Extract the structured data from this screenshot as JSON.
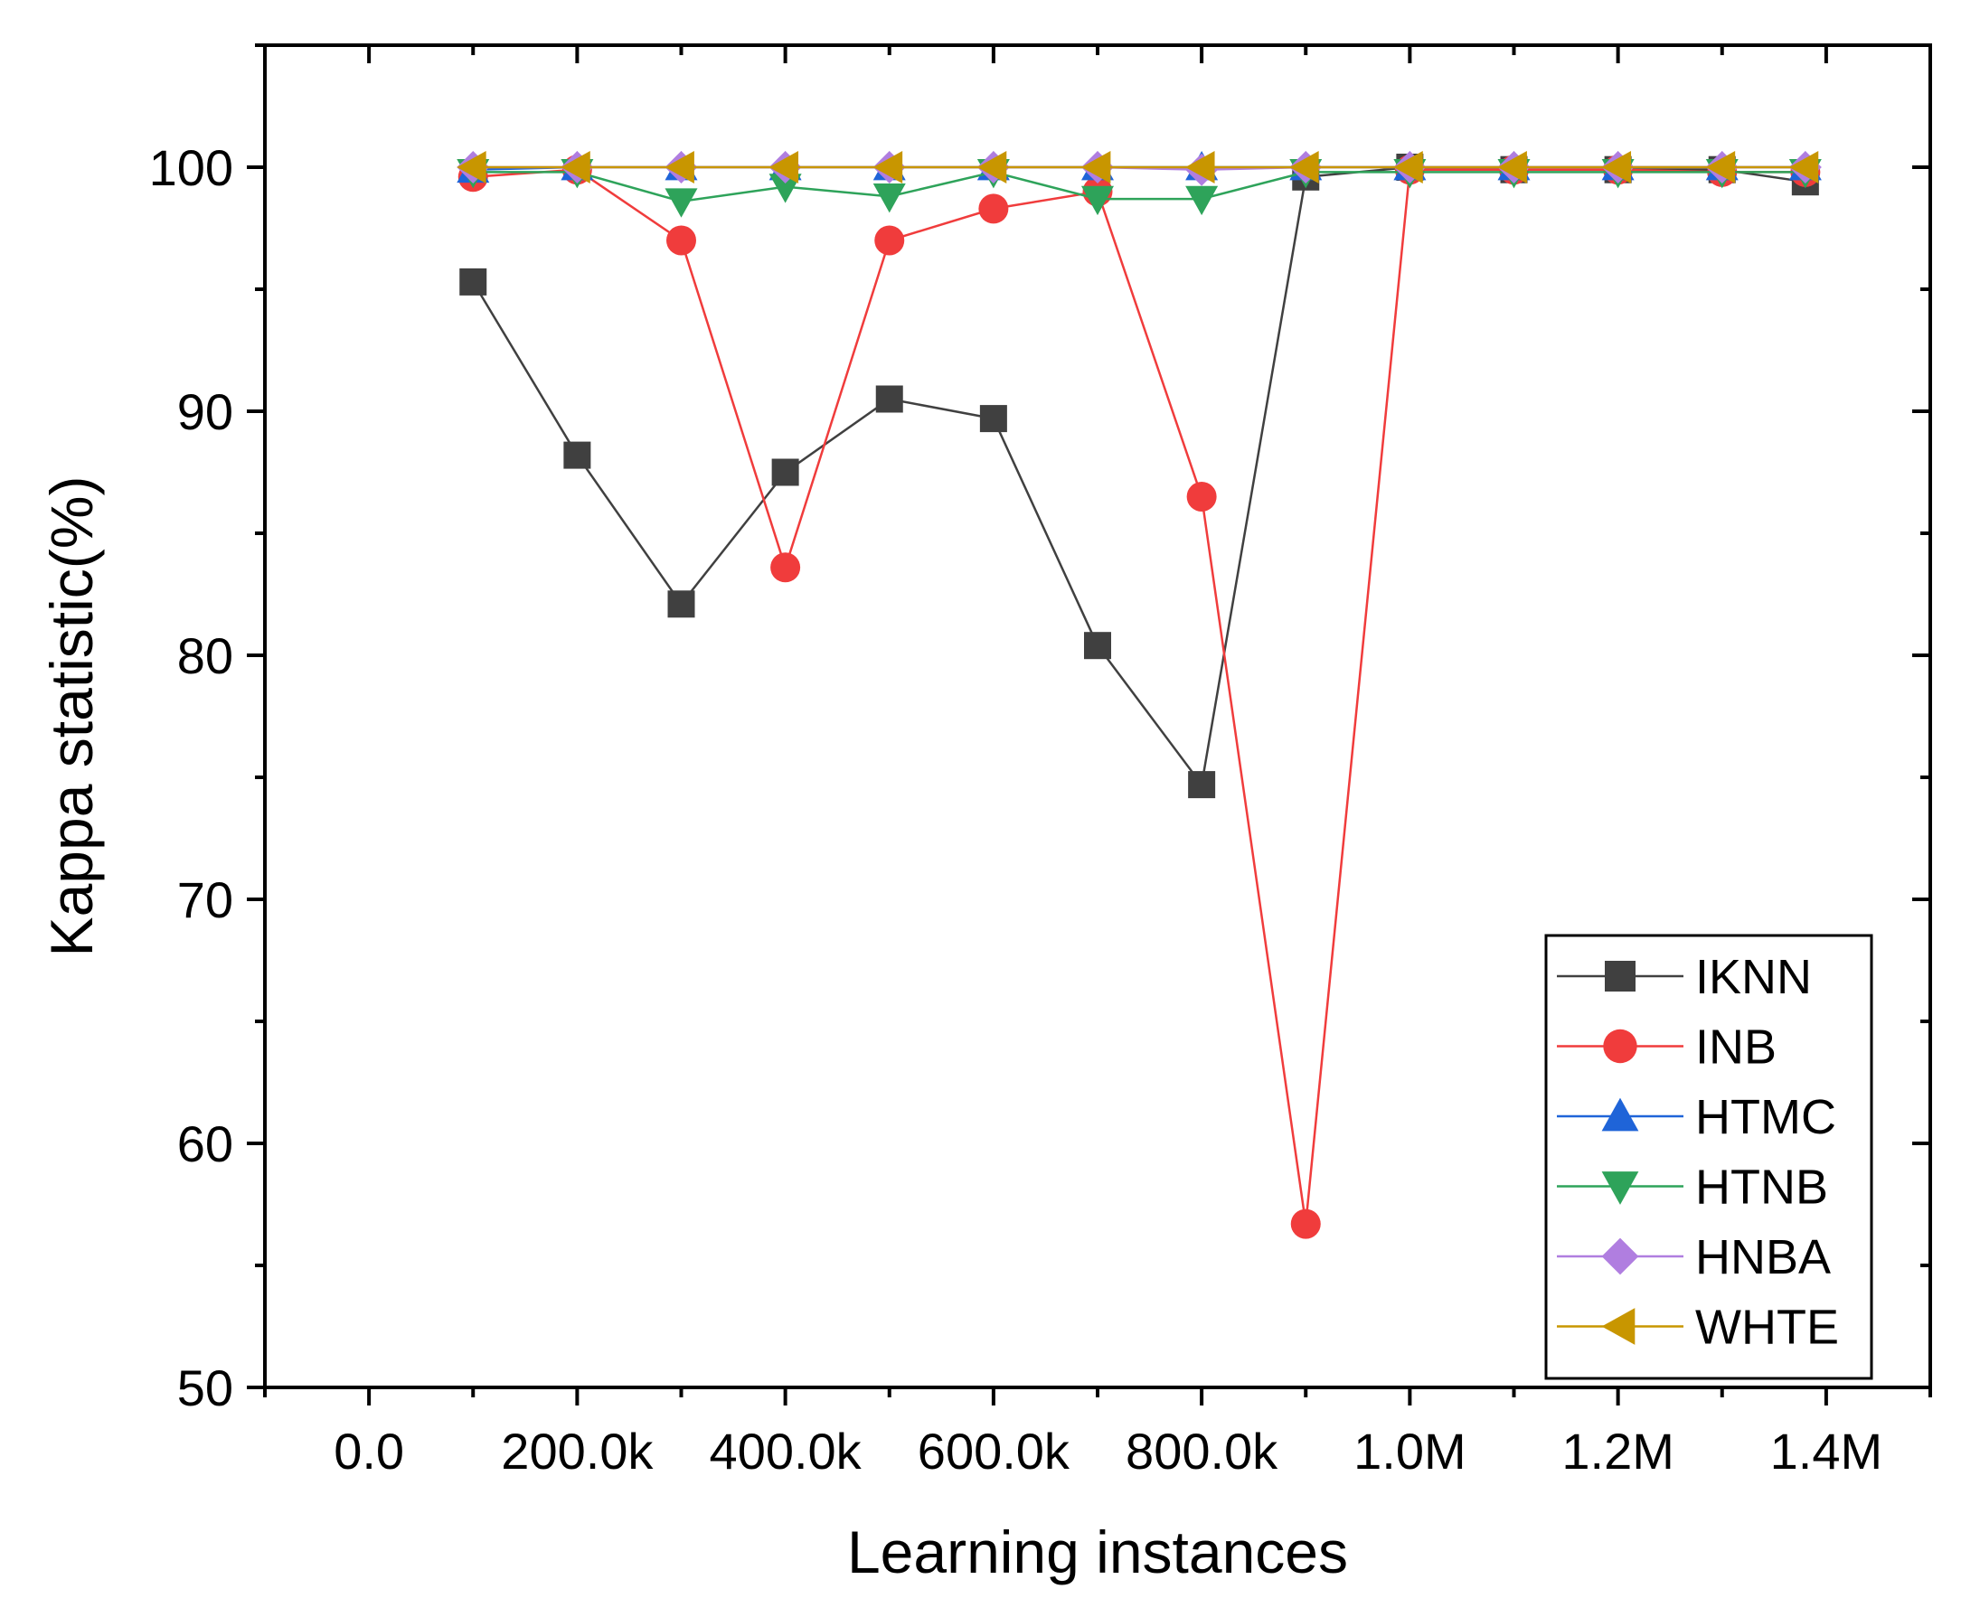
{
  "chart_data": {
    "type": "line",
    "title": "",
    "xlabel": "Learning instances",
    "ylabel": "Kappa statistic(%)",
    "xlim": [
      -100000,
      1500000
    ],
    "ylim": [
      50,
      105
    ],
    "x_ticks": [
      0,
      200000,
      400000,
      600000,
      800000,
      1000000,
      1200000,
      1400000
    ],
    "x_tick_labels": [
      "0.0",
      "200.0k",
      "400.0k",
      "600.0k",
      "800.0k",
      "1.0M",
      "1.2M",
      "1.4M"
    ],
    "y_ticks": [
      50,
      60,
      70,
      80,
      90,
      100
    ],
    "y_tick_labels": [
      "50",
      "60",
      "70",
      "80",
      "90",
      "100"
    ],
    "grid": false,
    "legend_position": "bottom-right",
    "x": [
      100000,
      200000,
      300000,
      400000,
      500000,
      600000,
      700000,
      800000,
      900000,
      1000000,
      1100000,
      1200000,
      1300000,
      1380000
    ],
    "series": [
      {
        "name": "IKNN",
        "color": "#404040",
        "marker": "square",
        "values": [
          95.3,
          88.2,
          82.1,
          87.5,
          90.5,
          89.7,
          80.4,
          74.7,
          99.6,
          100.0,
          99.9,
          99.9,
          99.9,
          99.4
        ]
      },
      {
        "name": "INB",
        "color": "#f03c3c",
        "marker": "circle",
        "values": [
          99.6,
          99.9,
          97.0,
          83.6,
          97.0,
          98.3,
          99.0,
          86.5,
          56.7,
          99.9,
          99.9,
          99.9,
          99.8,
          99.8
        ]
      },
      {
        "name": "HTMC",
        "color": "#1f64d8",
        "marker": "triangle-up",
        "values": [
          99.9,
          100.0,
          100.0,
          100.0,
          100.0,
          100.0,
          100.0,
          100.0,
          100.0,
          100.0,
          100.0,
          100.0,
          100.0,
          100.0
        ]
      },
      {
        "name": "HTNB",
        "color": "#2ea35a",
        "marker": "triangle-down",
        "values": [
          99.8,
          99.8,
          98.6,
          99.2,
          98.8,
          99.8,
          98.7,
          98.7,
          99.8,
          99.8,
          99.8,
          99.8,
          99.8,
          99.8
        ]
      },
      {
        "name": "HNBA",
        "color": "#b07ee0",
        "marker": "diamond",
        "values": [
          100.0,
          100.0,
          100.0,
          100.0,
          100.0,
          100.0,
          100.0,
          99.9,
          100.0,
          100.0,
          100.0,
          100.0,
          100.0,
          100.0
        ]
      },
      {
        "name": "WHTE",
        "color": "#c89600",
        "marker": "triangle-left",
        "values": [
          100.0,
          100.0,
          100.0,
          100.0,
          100.0,
          100.0,
          100.0,
          100.0,
          100.0,
          100.0,
          100.0,
          100.0,
          100.0,
          100.0
        ]
      }
    ]
  }
}
